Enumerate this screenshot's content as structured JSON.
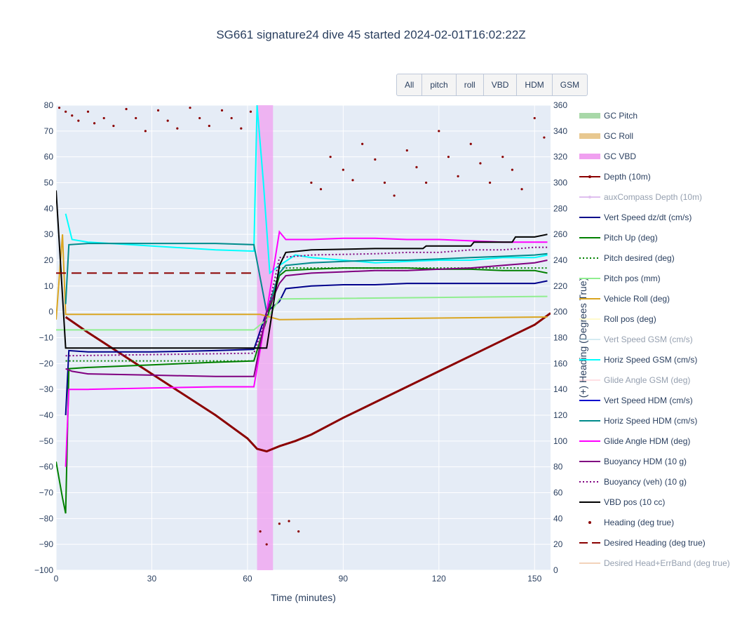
{
  "title": "SG661 signature24 dive 45 started 2024-02-01T16:02:22Z",
  "buttons": [
    "All",
    "pitch",
    "roll",
    "VBD",
    "HDM",
    "GSM"
  ],
  "chart_data": {
    "type": "line",
    "title": "SG661 signature24 dive 45 started 2024-02-01T16:02:22Z",
    "xlabel": "Time (minutes)",
    "ylabel": "",
    "y2label": "(+) Heading (Degrees True)",
    "xlim": [
      0,
      155
    ],
    "ylim": [
      -100,
      80
    ],
    "y2lim": [
      0,
      360
    ],
    "x_ticks": [
      0,
      30,
      60,
      90,
      120,
      150
    ],
    "y_ticks": [
      80,
      70,
      60,
      50,
      40,
      30,
      20,
      10,
      0,
      -10,
      -20,
      -30,
      -40,
      -50,
      -60,
      -70,
      -80,
      -90,
      -100
    ],
    "y2_ticks": [
      360,
      340,
      320,
      300,
      280,
      260,
      240,
      220,
      200,
      180,
      160,
      140,
      120,
      100,
      80,
      60,
      40,
      20,
      0
    ],
    "grid": true,
    "legend_placement": "right",
    "legend": [
      {
        "name": "GC Pitch",
        "color": "#a8d8a8",
        "style": "band",
        "visible": true
      },
      {
        "name": "GC Roll",
        "color": "#e8c890",
        "style": "band",
        "visible": true
      },
      {
        "name": "GC VBD",
        "color": "#f0a0f0",
        "style": "band",
        "visible": true
      },
      {
        "name": "Depth (10m)",
        "color": "#8b0000",
        "style": "line-marker",
        "visible": true
      },
      {
        "name": "auxCompass Depth (10m)",
        "color": "#c080e0",
        "style": "line-marker",
        "visible": false
      },
      {
        "name": "Vert Speed dz/dt (cm/s)",
        "color": "#00008b",
        "style": "line",
        "visible": true
      },
      {
        "name": "Pitch Up (deg)",
        "color": "#008000",
        "style": "line",
        "visible": true
      },
      {
        "name": "Pitch desired (deg)",
        "color": "#008000",
        "style": "dot",
        "visible": true
      },
      {
        "name": "Pitch pos (mm)",
        "color": "#90ee90",
        "style": "line",
        "visible": true
      },
      {
        "name": "Vehicle Roll (deg)",
        "color": "#daa520",
        "style": "line",
        "visible": true
      },
      {
        "name": "Roll pos (deg)",
        "color": "#fffacd",
        "style": "line",
        "visible": true
      },
      {
        "name": "Vert Speed GSM (cm/s)",
        "color": "#add8e6",
        "style": "line",
        "visible": false
      },
      {
        "name": "Horiz Speed GSM (cm/s)",
        "color": "#00ffff",
        "style": "line",
        "visible": true
      },
      {
        "name": "Glide Angle GSM (deg)",
        "color": "#ffc0cb",
        "style": "line",
        "visible": false
      },
      {
        "name": "Vert Speed HDM (cm/s)",
        "color": "#0000cd",
        "style": "line",
        "visible": true
      },
      {
        "name": "Horiz Speed HDM (cm/s)",
        "color": "#008b8b",
        "style": "line",
        "visible": true
      },
      {
        "name": "Glide Angle HDM (deg)",
        "color": "#ff00ff",
        "style": "line",
        "visible": true
      },
      {
        "name": "Buoyancy HDM (10 g)",
        "color": "#800080",
        "style": "line",
        "visible": true
      },
      {
        "name": "Buoyancy (veh) (10 g)",
        "color": "#800080",
        "style": "dot",
        "visible": true
      },
      {
        "name": "VBD pos (10 cc)",
        "color": "#000000",
        "style": "line",
        "visible": true
      },
      {
        "name": "Heading (deg true)",
        "color": "#8b0000",
        "style": "marker",
        "visible": true
      },
      {
        "name": "Desired Heading (deg true)",
        "color": "#8b0000",
        "style": "dash",
        "visible": true
      },
      {
        "name": "Desired Head+ErrBand (deg true)",
        "color": "#e8a878",
        "style": "line",
        "visible": false
      }
    ],
    "bands": [
      {
        "name": "GC VBD",
        "x0": 63,
        "x1": 68,
        "color": "#f0a0f0"
      }
    ],
    "series": [
      {
        "name": "Depth (10m)",
        "axis": "y",
        "x": [
          3,
          10,
          20,
          30,
          40,
          50,
          60,
          63,
          66,
          70,
          75,
          80,
          90,
          100,
          110,
          120,
          130,
          140,
          150,
          155
        ],
        "y": [
          -2,
          -8,
          -16,
          -24,
          -32,
          -40,
          -49,
          -53,
          -54,
          -52,
          -50,
          -47.5,
          -41,
          -35,
          -29,
          -23,
          -17,
          -11,
          -5,
          -0.5
        ]
      },
      {
        "name": "Vert Speed dz/dt (cm/s)",
        "axis": "y",
        "x": [
          3,
          4,
          10,
          30,
          50,
          62,
          66,
          70,
          72,
          80,
          90,
          100,
          110,
          120,
          130,
          140,
          150,
          154
        ],
        "y": [
          -40,
          -15,
          -15.5,
          -15.5,
          -15,
          -14.5,
          0,
          4,
          9,
          10,
          10.5,
          10.5,
          11,
          11,
          11,
          11,
          11,
          12
        ]
      },
      {
        "name": "Pitch Up (deg)",
        "axis": "y",
        "x": [
          0,
          1,
          2,
          3,
          4,
          10,
          30,
          50,
          62,
          66,
          70,
          72,
          80,
          90,
          100,
          110,
          120,
          130,
          140,
          150,
          154
        ],
        "y": [
          -58,
          -65,
          -72,
          -78,
          -22,
          -21.5,
          -20.5,
          -19.5,
          -19,
          -3,
          14,
          16,
          16.5,
          17,
          17,
          17,
          16.5,
          16.5,
          16,
          16,
          15
        ]
      },
      {
        "name": "Pitch desired (deg)",
        "axis": "y",
        "x": [
          3,
          62,
          66,
          70,
          154
        ],
        "y": [
          -19,
          -19,
          -3,
          17,
          17
        ]
      },
      {
        "name": "Pitch pos (mm)",
        "axis": "y",
        "x": [
          0,
          62,
          66,
          70,
          154
        ],
        "y": [
          -7,
          -7,
          -3,
          5,
          6
        ]
      },
      {
        "name": "Vehicle Roll (deg)",
        "axis": "y",
        "x": [
          0,
          2,
          3,
          4,
          62,
          64,
          70,
          154
        ],
        "y": [
          -3,
          30,
          -1,
          -1,
          -1,
          -1,
          -3,
          -2
        ]
      },
      {
        "name": "Horiz Speed GSM (cm/s)",
        "axis": "y",
        "x": [
          3,
          5,
          10,
          30,
          50,
          62,
          63,
          65,
          67,
          70,
          75,
          80,
          90,
          100,
          110,
          120,
          130,
          140,
          150,
          154
        ],
        "y": [
          38,
          28,
          27,
          25.5,
          24,
          23.5,
          80,
          50,
          15,
          18,
          22,
          21,
          20,
          19,
          19.5,
          20,
          20,
          21,
          21,
          22
        ]
      },
      {
        "name": "Horiz Speed HDM (cm/s)",
        "axis": "y",
        "x": [
          3,
          4,
          10,
          30,
          50,
          62,
          66,
          70,
          72,
          80,
          90,
          100,
          110,
          120,
          130,
          140,
          150,
          154
        ],
        "y": [
          3,
          26,
          26.5,
          26.5,
          26.5,
          26,
          0,
          15,
          18,
          19,
          19.5,
          20,
          20,
          20.5,
          21,
          21.5,
          22,
          22.5
        ]
      },
      {
        "name": "Glide Angle HDM (deg)",
        "axis": "y",
        "x": [
          3,
          4,
          10,
          30,
          50,
          62,
          66,
          70,
          72,
          80,
          90,
          100,
          110,
          120,
          130,
          140,
          150,
          154
        ],
        "y": [
          -60,
          -30,
          -30,
          -29.5,
          -29,
          -29,
          0,
          31,
          28,
          28,
          28.5,
          28.5,
          28,
          28,
          27.5,
          27,
          27,
          27
        ]
      },
      {
        "name": "Buoyancy HDM (10 g)",
        "axis": "y",
        "x": [
          3,
          5,
          10,
          30,
          50,
          62,
          66,
          70,
          72,
          80,
          90,
          100,
          110,
          120,
          130,
          140,
          150,
          154
        ],
        "y": [
          -22,
          -23,
          -24,
          -24.5,
          -25,
          -25,
          0,
          11,
          14,
          15,
          15.5,
          16,
          16,
          16.5,
          17,
          18,
          19,
          20
        ]
      },
      {
        "name": "Buoyancy (veh) (10 g)",
        "axis": "y",
        "x": [
          3,
          62,
          66,
          70,
          80,
          100,
          110,
          120,
          130,
          140,
          150,
          154
        ],
        "y": [
          -17,
          -16,
          -2,
          21,
          22,
          22.5,
          23,
          23,
          24,
          24,
          25,
          25
        ]
      },
      {
        "name": "VBD pos (10 cc)",
        "axis": "y",
        "x": [
          0,
          3,
          62,
          66,
          70,
          72,
          80,
          100,
          115,
          116,
          130,
          131,
          143,
          144,
          150,
          154
        ],
        "y": [
          47,
          -14,
          -14,
          -14,
          18,
          23,
          24,
          24.5,
          24.5,
          25.5,
          25.5,
          27,
          27,
          29,
          29,
          30
        ]
      },
      {
        "name": "Desired Heading (deg true)",
        "axis": "y2",
        "x": [
          0,
          62
        ],
        "y": [
          230,
          230
        ]
      },
      {
        "name": "Heading (deg true)",
        "axis": "y2",
        "x": [
          1,
          3,
          5,
          7,
          10,
          12,
          15,
          18,
          22,
          25,
          28,
          32,
          35,
          38,
          42,
          45,
          48,
          52,
          55,
          58,
          61,
          64,
          66,
          70,
          73,
          76,
          80,
          83,
          86,
          90,
          93,
          96,
          100,
          103,
          106,
          110,
          113,
          116,
          120,
          123,
          126,
          130,
          133,
          136,
          140,
          143,
          146,
          150,
          153
        ],
        "y": [
          358,
          355,
          352,
          348,
          355,
          346,
          350,
          344,
          357,
          350,
          340,
          356,
          348,
          342,
          358,
          350,
          344,
          356,
          350,
          342,
          355,
          30,
          20,
          36,
          38,
          30,
          300,
          295,
          320,
          310,
          302,
          330,
          318,
          300,
          290,
          325,
          312,
          300,
          340,
          320,
          305,
          330,
          315,
          300,
          320,
          310,
          295,
          350,
          335
        ]
      }
    ]
  }
}
